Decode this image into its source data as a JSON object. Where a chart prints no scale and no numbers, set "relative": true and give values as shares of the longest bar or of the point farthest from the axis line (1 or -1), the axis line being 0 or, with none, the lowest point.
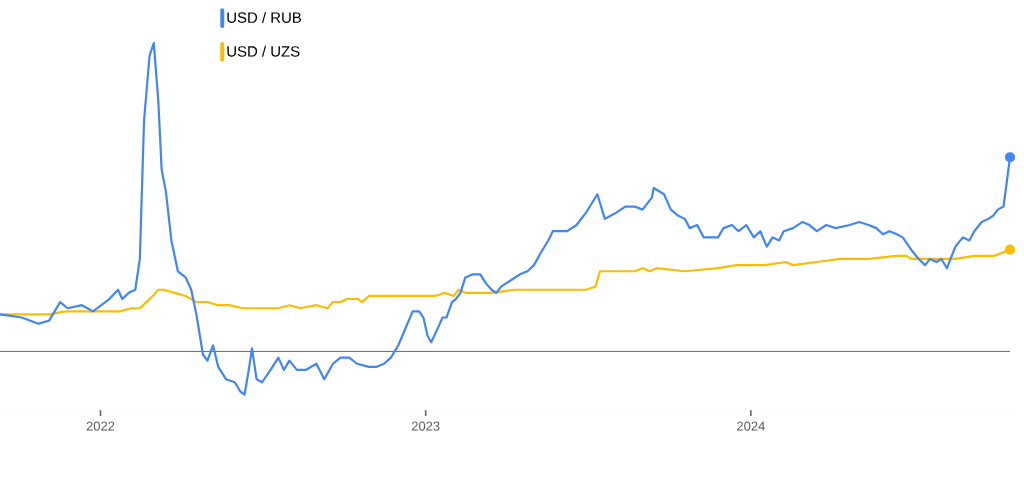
{
  "chart_data": {
    "type": "line",
    "relative": true,
    "xlim": [
      2021.691,
      2024.797
    ],
    "xticks": [
      2022,
      2023,
      2024
    ],
    "legend": "top left",
    "line_style": "solid",
    "series": [
      {
        "name": "USD / RUB",
        "color": "#4285f4",
        "x": [
          2021.691,
          2021.758,
          2021.809,
          2021.842,
          2021.876,
          2021.899,
          2021.943,
          2021.977,
          2022.027,
          2022.054,
          2022.067,
          2022.087,
          2022.107,
          2022.121,
          2022.134,
          2022.151,
          2022.164,
          2022.178,
          2022.188,
          2022.201,
          2022.218,
          2022.238,
          2022.262,
          2022.279,
          2022.295,
          2022.315,
          2022.329,
          2022.346,
          2022.362,
          2022.386,
          2022.413,
          2022.43,
          2022.443,
          2022.456,
          2022.466,
          2022.48,
          2022.497,
          2022.523,
          2022.547,
          2022.564,
          2022.581,
          2022.604,
          2022.631,
          2022.664,
          2022.688,
          2022.715,
          2022.738,
          2022.765,
          2022.789,
          2022.826,
          2022.849,
          2022.872,
          2022.893,
          2022.916,
          2022.94,
          2022.96,
          2022.98,
          2022.993,
          2023.006,
          2023.017,
          2023.035,
          2023.052,
          2023.064,
          2023.081,
          2023.093,
          2023.107,
          2023.122,
          2023.145,
          2023.168,
          2023.186,
          2023.203,
          2023.217,
          2023.232,
          2023.246,
          2023.261,
          2023.29,
          2023.313,
          2023.333,
          2023.354,
          2023.377,
          2023.391,
          2023.406,
          2023.435,
          2023.464,
          2023.493,
          2023.528,
          2023.551,
          2023.586,
          2023.614,
          2023.643,
          2023.667,
          2023.696,
          2023.701,
          2023.733,
          2023.754,
          2023.777,
          2023.797,
          2023.812,
          2023.835,
          2023.855,
          2023.875,
          2023.899,
          2023.916,
          2023.942,
          2023.962,
          2023.986,
          2024.009,
          2024.029,
          2024.049,
          2024.067,
          2024.087,
          2024.101,
          2024.13,
          2024.159,
          2024.18,
          2024.203,
          2024.232,
          2024.261,
          2024.304,
          2024.333,
          2024.362,
          2024.386,
          2024.406,
          2024.426,
          2024.449,
          2024.467,
          2024.493,
          2024.516,
          2024.536,
          2024.551,
          2024.571,
          2024.586,
          2024.603,
          2024.629,
          2024.652,
          2024.672,
          2024.687,
          2024.71,
          2024.73,
          2024.745,
          2024.759,
          2024.777,
          2024.797
        ],
        "values": [
          0.12,
          0.11,
          0.09,
          0.1,
          0.16,
          0.14,
          0.15,
          0.13,
          0.17,
          0.2,
          0.17,
          0.19,
          0.2,
          0.3,
          0.75,
          0.96,
          1,
          0.81,
          0.59,
          0.52,
          0.36,
          0.26,
          0.24,
          0.2,
          0.12,
          -0.01,
          -0.03,
          0.02,
          -0.05,
          -0.09,
          -0.1,
          -0.13,
          -0.14,
          -0.06,
          0.01,
          -0.09,
          -0.1,
          -0.06,
          -0.02,
          -0.06,
          -0.03,
          -0.06,
          -0.06,
          -0.04,
          -0.09,
          -0.04,
          -0.02,
          -0.02,
          -0.04,
          -0.05,
          -0.05,
          -0.04,
          -0.02,
          0.02,
          0.08,
          0.13,
          0.13,
          0.11,
          0.05,
          0.03,
          0.07,
          0.11,
          0.11,
          0.16,
          0.17,
          0.19,
          0.24,
          0.25,
          0.25,
          0.22,
          0.2,
          0.19,
          0.21,
          0.22,
          0.23,
          0.25,
          0.26,
          0.28,
          0.32,
          0.36,
          0.39,
          0.39,
          0.39,
          0.41,
          0.45,
          0.51,
          0.43,
          0.45,
          0.47,
          0.47,
          0.46,
          0.5,
          0.53,
          0.51,
          0.46,
          0.44,
          0.43,
          0.4,
          0.41,
          0.37,
          0.37,
          0.37,
          0.4,
          0.41,
          0.39,
          0.41,
          0.37,
          0.39,
          0.34,
          0.37,
          0.36,
          0.39,
          0.4,
          0.42,
          0.41,
          0.39,
          0.41,
          0.4,
          0.41,
          0.42,
          0.41,
          0.4,
          0.38,
          0.39,
          0.38,
          0.37,
          0.33,
          0.3,
          0.28,
          0.3,
          0.29,
          0.3,
          0.27,
          0.34,
          0.37,
          0.36,
          0.39,
          0.42,
          0.43,
          0.44,
          0.46,
          0.47,
          0.63
        ]
      },
      {
        "name": "USD / UZS",
        "color": "#fbbc04",
        "x": [
          2021.691,
          2021.742,
          2021.792,
          2021.842,
          2021.893,
          2021.943,
          2021.977,
          2022.027,
          2022.06,
          2022.094,
          2022.121,
          2022.141,
          2022.161,
          2022.178,
          2022.195,
          2022.228,
          2022.262,
          2022.295,
          2022.329,
          2022.362,
          2022.396,
          2022.436,
          2022.47,
          2022.497,
          2022.547,
          2022.581,
          2022.614,
          2022.664,
          2022.698,
          2022.715,
          2022.738,
          2022.758,
          2022.792,
          2022.805,
          2022.826,
          2022.849,
          2022.899,
          2022.966,
          2023.0,
          2023.029,
          2023.058,
          2023.087,
          2023.101,
          2023.122,
          2023.145,
          2023.203,
          2023.275,
          2023.319,
          2023.406,
          2023.449,
          2023.493,
          2023.522,
          2023.536,
          2023.58,
          2023.643,
          2023.667,
          2023.69,
          2023.71,
          2023.797,
          2023.899,
          2023.957,
          2024.0,
          2024.043,
          2024.107,
          2024.13,
          2024.203,
          2024.275,
          2024.362,
          2024.449,
          2024.478,
          2024.493,
          2024.551,
          2024.629,
          2024.687,
          2024.748,
          2024.797
        ],
        "values": [
          0.12,
          0.12,
          0.12,
          0.12,
          0.13,
          0.13,
          0.13,
          0.13,
          0.13,
          0.14,
          0.14,
          0.16,
          0.18,
          0.2,
          0.2,
          0.19,
          0.18,
          0.16,
          0.16,
          0.15,
          0.15,
          0.14,
          0.14,
          0.14,
          0.14,
          0.15,
          0.14,
          0.15,
          0.14,
          0.16,
          0.16,
          0.17,
          0.17,
          0.16,
          0.18,
          0.18,
          0.18,
          0.18,
          0.18,
          0.18,
          0.19,
          0.18,
          0.2,
          0.19,
          0.19,
          0.19,
          0.2,
          0.2,
          0.2,
          0.2,
          0.2,
          0.21,
          0.26,
          0.26,
          0.26,
          0.27,
          0.26,
          0.27,
          0.26,
          0.27,
          0.28,
          0.28,
          0.28,
          0.29,
          0.28,
          0.29,
          0.3,
          0.3,
          0.31,
          0.31,
          0.3,
          0.3,
          0.3,
          0.31,
          0.31,
          0.33
        ]
      }
    ]
  }
}
